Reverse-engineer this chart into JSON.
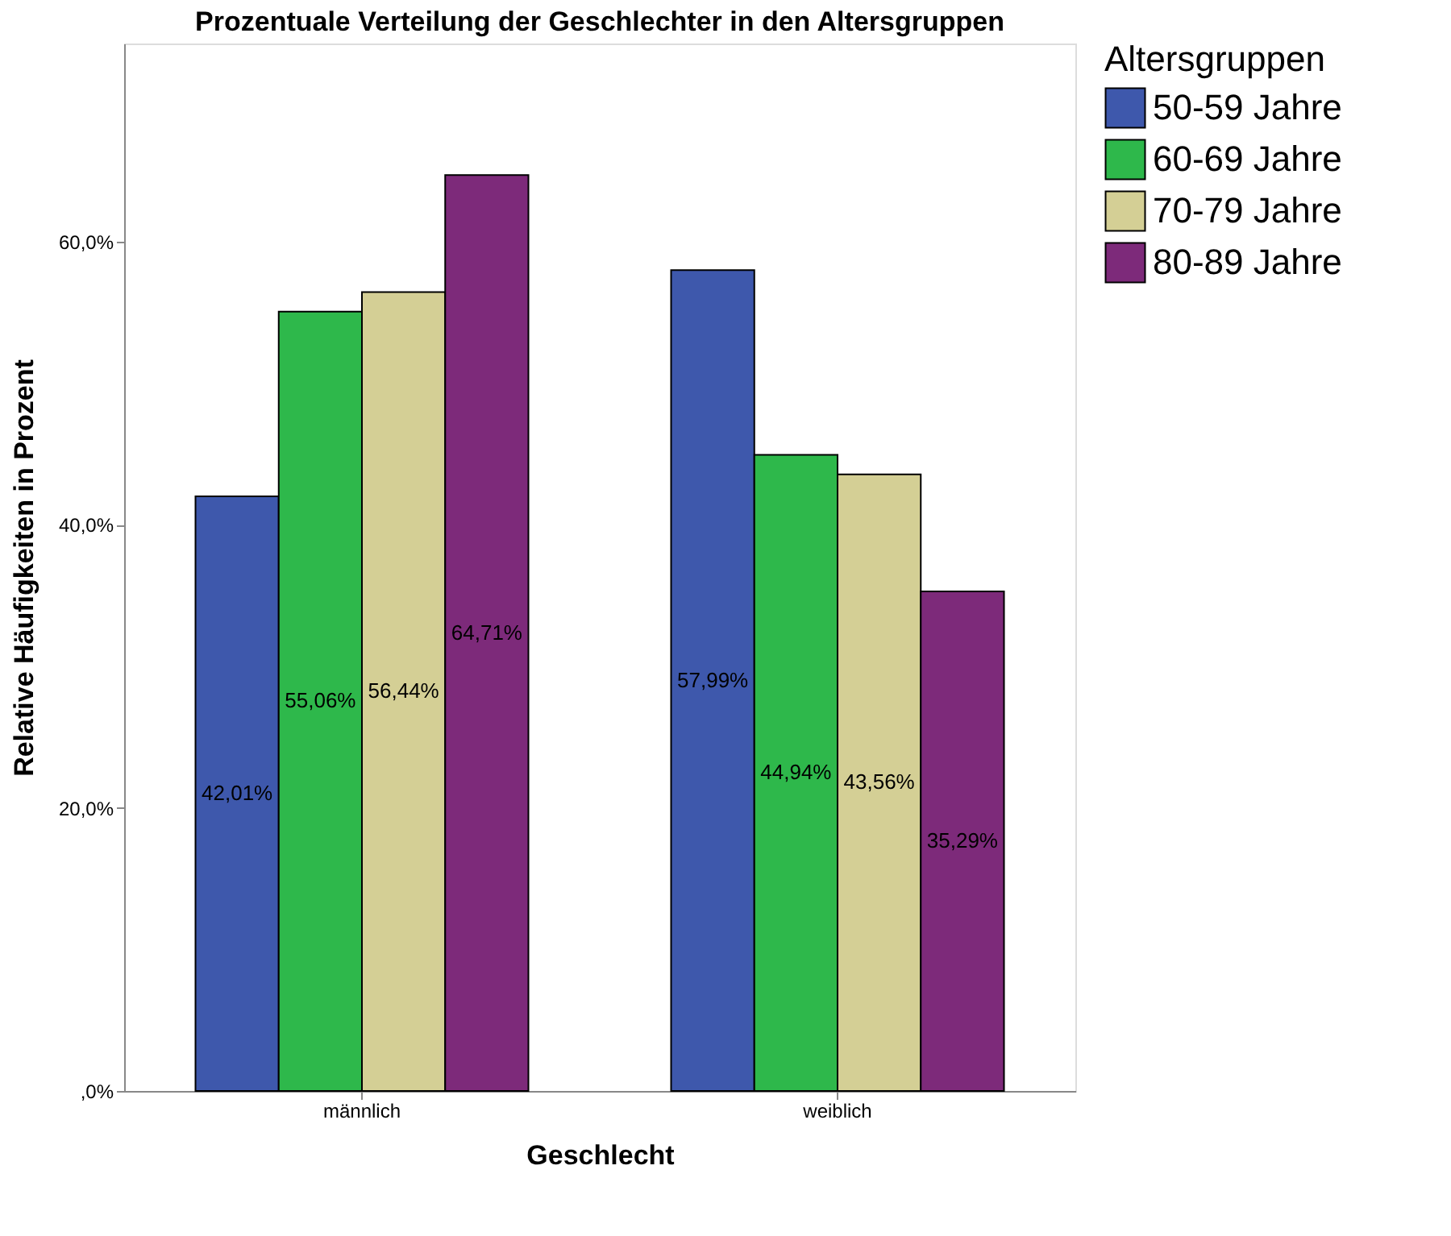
{
  "chart_data": {
    "type": "bar",
    "title": "Prozentuale Verteilung der Geschlechter in den Altersgruppen",
    "xlabel": "Geschlecht",
    "ylabel": "Relative Häufigkeiten in Prozent",
    "legend_title": "Altersgruppen",
    "legend": "top right",
    "grid": false,
    "categories": [
      "männlich",
      "weiblich"
    ],
    "series": [
      {
        "name": "50-59 Jahre",
        "color": "#3e58ac",
        "values": [
          42.01,
          57.99
        ],
        "value_labels": [
          "42,01%",
          "57,99%"
        ]
      },
      {
        "name": "60-69 Jahre",
        "color": "#2eb84b",
        "values": [
          55.06,
          44.94
        ],
        "value_labels": [
          "55,06%",
          "44,94%"
        ]
      },
      {
        "name": "70-79 Jahre",
        "color": "#d4cf95",
        "values": [
          56.44,
          43.56
        ],
        "value_labels": [
          "56,44%",
          "43,56%"
        ]
      },
      {
        "name": "80-89 Jahre",
        "color": "#7d2a7a",
        "values": [
          64.71,
          35.29
        ],
        "value_labels": [
          "64,71%",
          "35,29%"
        ]
      }
    ],
    "ylim": [
      0,
      74
    ],
    "yticks": [
      {
        "value": 0,
        "label": ",0%"
      },
      {
        "value": 20,
        "label": "20,0%"
      },
      {
        "value": 40,
        "label": "40,0%"
      },
      {
        "value": 60,
        "label": "60,0%"
      }
    ]
  }
}
